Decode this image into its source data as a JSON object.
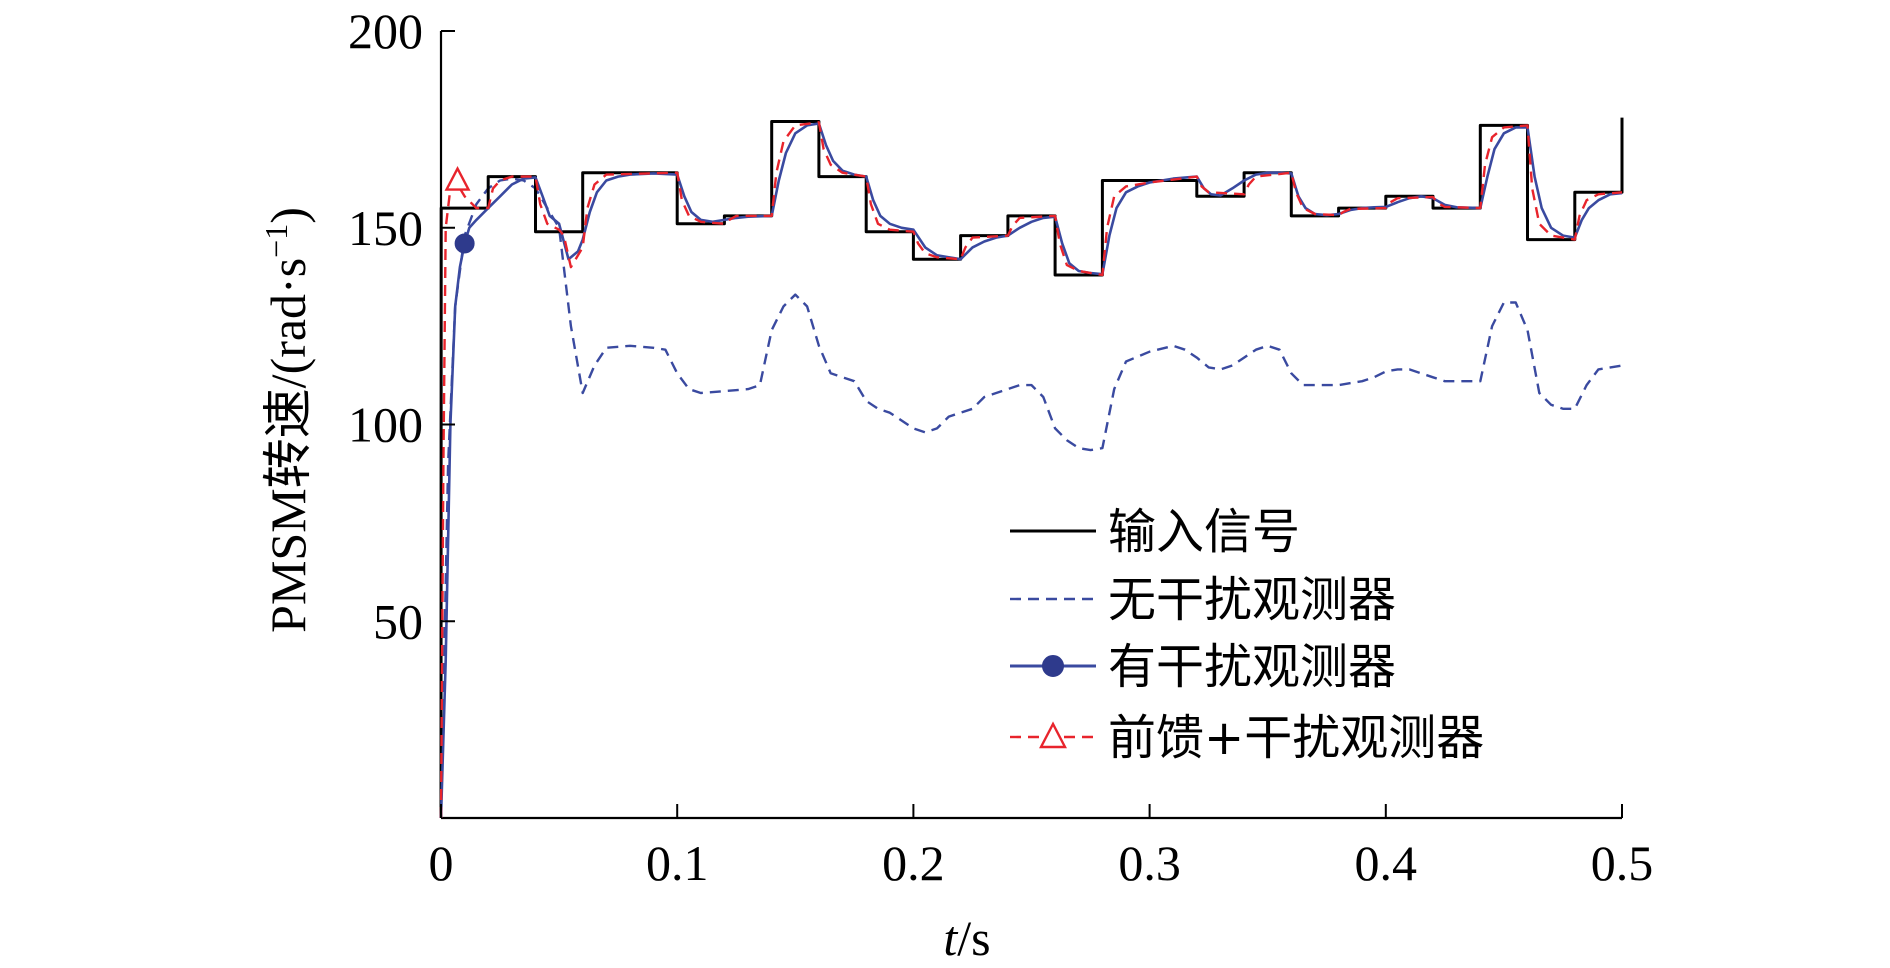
{
  "chart_data": {
    "type": "line",
    "xlabel_italic": "t",
    "xlabel_unit": "/s",
    "ylabel_main": "PMSM转速/(rad·s",
    "ylabel_sup": "−1",
    "ylabel_close": ")",
    "xlim": [
      0,
      0.5
    ],
    "ylim": [
      0,
      200
    ],
    "x_ticks": [
      0,
      0.1,
      0.2,
      0.3,
      0.4,
      0.5
    ],
    "x_tick_labels": [
      "0",
      "0.1",
      "0.2",
      "0.3",
      "0.4",
      "0.5"
    ],
    "y_ticks": [
      50,
      100,
      150,
      200
    ],
    "y_tick_labels": [
      "50",
      "100",
      "150",
      "200"
    ],
    "legend_position": "lower-right",
    "series": [
      {
        "name": "输入信号",
        "color": "#000000",
        "style": "solid",
        "marker": "none",
        "x": [
          0,
          0.0001,
          0.02,
          0.02,
          0.04,
          0.04,
          0.06,
          0.06,
          0.1,
          0.1,
          0.12,
          0.12,
          0.14,
          0.14,
          0.16,
          0.16,
          0.18,
          0.18,
          0.2,
          0.2,
          0.22,
          0.22,
          0.24,
          0.24,
          0.26,
          0.26,
          0.28,
          0.28,
          0.32,
          0.32,
          0.34,
          0.34,
          0.36,
          0.36,
          0.38,
          0.38,
          0.4,
          0.4,
          0.42,
          0.42,
          0.44,
          0.44,
          0.46,
          0.46,
          0.48,
          0.48,
          0.5,
          0.5
        ],
        "y": [
          0,
          155,
          155,
          163,
          163,
          149,
          149,
          164,
          164,
          151,
          151,
          153,
          153,
          177,
          177,
          163,
          163,
          149,
          149,
          142,
          142,
          148,
          148,
          153,
          153,
          138,
          138,
          162,
          162,
          158,
          158,
          164,
          164,
          153,
          153,
          155,
          155,
          158,
          158,
          155,
          155,
          176,
          176,
          147,
          147,
          159,
          159,
          178
        ]
      },
      {
        "name": "无干扰观测器",
        "color": "#3a4aa0",
        "style": "dashed",
        "marker": "none",
        "x": [
          0,
          0.003,
          0.006,
          0.01,
          0.015,
          0.02,
          0.025,
          0.03,
          0.035,
          0.04,
          0.045,
          0.05,
          0.055,
          0.06,
          0.065,
          0.07,
          0.08,
          0.09,
          0.095,
          0.1,
          0.105,
          0.11,
          0.12,
          0.13,
          0.135,
          0.14,
          0.145,
          0.15,
          0.155,
          0.16,
          0.165,
          0.17,
          0.175,
          0.18,
          0.185,
          0.19,
          0.2,
          0.205,
          0.21,
          0.215,
          0.22,
          0.225,
          0.23,
          0.24,
          0.245,
          0.25,
          0.255,
          0.26,
          0.265,
          0.27,
          0.275,
          0.28,
          0.285,
          0.29,
          0.3,
          0.31,
          0.315,
          0.32,
          0.325,
          0.33,
          0.335,
          0.34,
          0.345,
          0.35,
          0.355,
          0.36,
          0.365,
          0.37,
          0.38,
          0.39,
          0.395,
          0.4,
          0.405,
          0.41,
          0.42,
          0.425,
          0.43,
          0.435,
          0.44,
          0.445,
          0.45,
          0.455,
          0.46,
          0.465,
          0.47,
          0.475,
          0.48,
          0.485,
          0.49,
          0.5
        ],
        "y": [
          0,
          90,
          130,
          148,
          156,
          160,
          162,
          162.5,
          162,
          160,
          155,
          150,
          125,
          108,
          115,
          119.5,
          120,
          119.5,
          119,
          113,
          109,
          108,
          108.5,
          109,
          110,
          124,
          130,
          133,
          130,
          120,
          113,
          112,
          111,
          106,
          104,
          103,
          99,
          98,
          99,
          102,
          103,
          104,
          107,
          109,
          110,
          110,
          107,
          99,
          96,
          94,
          93.5,
          94,
          109,
          116,
          118.5,
          120,
          119,
          117,
          114.5,
          114,
          115,
          117,
          119,
          120,
          119,
          113,
          110,
          110,
          110,
          111,
          112,
          113.5,
          114,
          114,
          112,
          111,
          111,
          111,
          111,
          125,
          131,
          131,
          124,
          108,
          105,
          104,
          104,
          110,
          114,
          115
        ]
      },
      {
        "name": "有干扰观测器",
        "color": "#3a4aa0",
        "style": "solid",
        "marker": "circle",
        "marker_x": [
          0.01
        ],
        "marker_y": [
          146
        ],
        "x": [
          0,
          0.002,
          0.004,
          0.006,
          0.008,
          0.01,
          0.012,
          0.015,
          0.02,
          0.025,
          0.03,
          0.035,
          0.04,
          0.043,
          0.046,
          0.05,
          0.054,
          0.058,
          0.06,
          0.063,
          0.066,
          0.07,
          0.075,
          0.08,
          0.09,
          0.1,
          0.103,
          0.106,
          0.11,
          0.115,
          0.12,
          0.125,
          0.13,
          0.14,
          0.143,
          0.146,
          0.15,
          0.155,
          0.16,
          0.163,
          0.166,
          0.17,
          0.175,
          0.18,
          0.183,
          0.186,
          0.19,
          0.195,
          0.2,
          0.205,
          0.21,
          0.215,
          0.22,
          0.225,
          0.23,
          0.235,
          0.24,
          0.245,
          0.25,
          0.255,
          0.26,
          0.263,
          0.266,
          0.27,
          0.275,
          0.28,
          0.283,
          0.286,
          0.29,
          0.295,
          0.3,
          0.31,
          0.32,
          0.323,
          0.326,
          0.33,
          0.335,
          0.34,
          0.345,
          0.35,
          0.355,
          0.36,
          0.363,
          0.366,
          0.37,
          0.375,
          0.38,
          0.385,
          0.39,
          0.395,
          0.4,
          0.405,
          0.41,
          0.415,
          0.42,
          0.425,
          0.43,
          0.44,
          0.443,
          0.446,
          0.45,
          0.455,
          0.46,
          0.463,
          0.466,
          0.47,
          0.475,
          0.48,
          0.483,
          0.486,
          0.49,
          0.495,
          0.5
        ],
        "y": [
          0,
          40,
          100,
          130,
          140,
          146,
          150,
          152,
          155,
          158,
          161,
          162.5,
          162.8,
          158,
          153,
          151,
          142,
          144,
          147,
          154,
          159,
          162,
          163,
          163.5,
          163.8,
          163.5,
          158,
          154,
          152,
          151.5,
          152,
          152.5,
          152.8,
          153,
          162,
          169,
          174,
          176,
          176.5,
          171,
          167,
          164.5,
          163.5,
          163,
          157,
          153,
          151,
          150,
          149.5,
          145,
          143,
          142.5,
          142,
          145,
          146.5,
          147.5,
          148,
          150,
          151.5,
          152.5,
          152.8,
          146,
          141,
          139,
          138.5,
          138.2,
          148,
          155,
          159,
          160.5,
          161.5,
          162.5,
          163,
          160,
          158.5,
          158.2,
          160,
          162,
          163.5,
          164,
          164,
          163.8,
          158,
          155,
          153.5,
          153.2,
          153.5,
          154.5,
          155,
          155.2,
          155.3,
          156.5,
          157.5,
          158,
          157.5,
          155.8,
          155.2,
          155,
          163,
          170,
          174,
          175.5,
          175.5,
          163,
          155,
          150,
          148,
          147.5,
          152,
          155,
          157,
          158.5,
          158.8
        ]
      },
      {
        "name": "前馈+干扰观测器",
        "color": "#e8242c",
        "style": "dashed",
        "marker": "triangle",
        "marker_x": [
          0.007
        ],
        "marker_y": [
          162
        ],
        "x": [
          0,
          0.001,
          0.002,
          0.004,
          0.006,
          0.01,
          0.015,
          0.02,
          0.022,
          0.025,
          0.03,
          0.04,
          0.042,
          0.045,
          0.05,
          0.052,
          0.055,
          0.06,
          0.062,
          0.065,
          0.07,
          0.1,
          0.102,
          0.105,
          0.11,
          0.12,
          0.122,
          0.125,
          0.14,
          0.142,
          0.145,
          0.15,
          0.16,
          0.162,
          0.165,
          0.17,
          0.18,
          0.182,
          0.185,
          0.19,
          0.2,
          0.202,
          0.205,
          0.21,
          0.22,
          0.222,
          0.225,
          0.24,
          0.242,
          0.245,
          0.26,
          0.262,
          0.265,
          0.27,
          0.28,
          0.282,
          0.285,
          0.29,
          0.3,
          0.32,
          0.322,
          0.325,
          0.34,
          0.342,
          0.345,
          0.36,
          0.362,
          0.365,
          0.37,
          0.38,
          0.382,
          0.385,
          0.4,
          0.402,
          0.405,
          0.42,
          0.422,
          0.425,
          0.44,
          0.442,
          0.445,
          0.45,
          0.46,
          0.462,
          0.465,
          0.47,
          0.48,
          0.482,
          0.485,
          0.49,
          0.5
        ],
        "y": [
          0,
          90,
          150,
          160,
          162,
          158,
          155,
          155,
          160,
          162,
          163,
          163,
          156,
          151,
          149.5,
          148,
          140,
          145,
          155,
          161,
          163.5,
          164,
          157,
          153,
          151.5,
          151,
          152,
          153,
          153,
          164,
          172,
          176,
          176.8,
          170,
          166,
          164,
          163,
          156,
          151,
          149.5,
          149,
          146,
          143.5,
          142.5,
          142,
          145,
          147.5,
          148,
          150.5,
          152.5,
          153,
          146,
          140.5,
          139,
          138,
          150,
          158,
          160.5,
          161.5,
          163,
          160.5,
          159,
          158.5,
          161,
          163,
          164,
          159,
          155,
          153.5,
          153.2,
          154,
          154.8,
          155,
          156.5,
          157.5,
          157.8,
          156.3,
          155.3,
          155,
          166,
          173,
          175.5,
          176,
          160,
          151,
          148,
          147,
          153,
          157,
          158.5,
          159
        ]
      }
    ]
  }
}
